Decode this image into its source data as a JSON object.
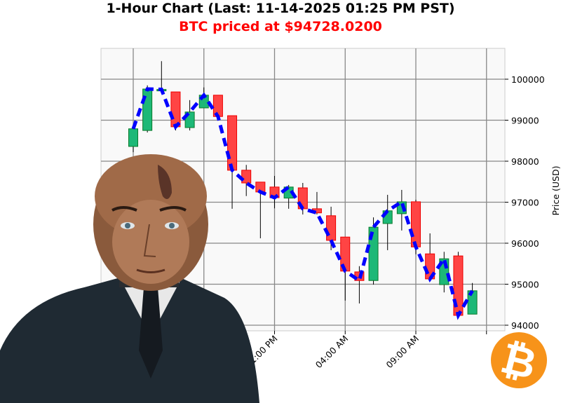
{
  "header": {
    "title": "1-Hour Chart (Last: 11-14-2025 01:25 PM PST)",
    "subtitle": "BTC priced at $94728.0200",
    "subtitle_color": "#ff0000"
  },
  "colors": {
    "up": "#1db877",
    "down": "#ff4444",
    "line": "#0000ff",
    "grid": "#888888",
    "plot_bg": "#f9f9f9",
    "bitcoin": "#f7931a"
  },
  "chart_data": {
    "type": "candlestick",
    "title": "1-Hour Chart (Last: 11-14-2025 01:25 PM PST)",
    "ylabel": "Price (USD)",
    "ylim": [
      93890,
      100970
    ],
    "yticks": [
      94000,
      95000,
      96000,
      97000,
      98000,
      99000,
      100000
    ],
    "xticks": [
      {
        "index": 10,
        "label": "11:00 PM"
      },
      {
        "index": 15,
        "label": "04:00 AM"
      },
      {
        "index": 20,
        "label": "09:00 AM"
      }
    ],
    "grid": true,
    "candles": [
      {
        "time": "11-13 01:00 PM",
        "o": 98360,
        "h": 98790,
        "l": 98220,
        "c": 98790
      },
      {
        "time": "11-13 02:00 PM",
        "o": 98750,
        "h": 99850,
        "l": 98700,
        "c": 99760
      },
      {
        "time": "11-13 03:00 PM",
        "o": 99730,
        "h": 100440,
        "l": 99700,
        "c": 99750
      },
      {
        "time": "11-13 04:00 PM",
        "o": 99690,
        "h": 99690,
        "l": 98750,
        "c": 98840
      },
      {
        "time": "11-13 05:00 PM",
        "o": 98820,
        "h": 99490,
        "l": 98750,
        "c": 99200
      },
      {
        "time": "11-13 06:00 PM",
        "o": 99300,
        "h": 99800,
        "l": 99300,
        "c": 99610
      },
      {
        "time": "11-13 07:00 PM",
        "o": 99610,
        "h": 99610,
        "l": 98990,
        "c": 99090
      },
      {
        "time": "11-13 08:00 PM",
        "o": 99110,
        "h": 99110,
        "l": 96840,
        "c": 97780
      },
      {
        "time": "11-13 09:00 PM",
        "o": 97780,
        "h": 97910,
        "l": 97150,
        "c": 97470
      },
      {
        "time": "11-13 10:00 PM",
        "o": 97490,
        "h": 97490,
        "l": 96120,
        "c": 97250
      },
      {
        "time": "11-13 11:00 PM",
        "o": 97370,
        "h": 97640,
        "l": 96850,
        "c": 97110
      },
      {
        "time": "11-14 12:00 AM",
        "o": 97100,
        "h": 97420,
        "l": 96840,
        "c": 97370
      },
      {
        "time": "11-14 01:00 AM",
        "o": 97350,
        "h": 97470,
        "l": 96700,
        "c": 96840
      },
      {
        "time": "11-14 02:00 AM",
        "o": 96840,
        "h": 97250,
        "l": 96700,
        "c": 96740
      },
      {
        "time": "11-14 03:00 AM",
        "o": 96670,
        "h": 96890,
        "l": 95830,
        "c": 96070
      },
      {
        "time": "11-14 04:00 AM",
        "o": 96150,
        "h": 96150,
        "l": 94600,
        "c": 95320
      },
      {
        "time": "11-14 05:00 AM",
        "o": 95300,
        "h": 95440,
        "l": 94530,
        "c": 95090
      },
      {
        "time": "11-14 06:00 AM",
        "o": 95090,
        "h": 96630,
        "l": 94990,
        "c": 96390
      },
      {
        "time": "11-14 07:00 AM",
        "o": 96480,
        "h": 97180,
        "l": 95830,
        "c": 96790
      },
      {
        "time": "11-14 08:00 AM",
        "o": 96720,
        "h": 97300,
        "l": 96310,
        "c": 97010
      },
      {
        "time": "11-14 09:00 AM",
        "o": 97010,
        "h": 97060,
        "l": 95730,
        "c": 95910
      },
      {
        "time": "11-14 10:00 AM",
        "o": 95740,
        "h": 96240,
        "l": 95130,
        "c": 95130
      },
      {
        "time": "11-14 11:00 AM",
        "o": 94990,
        "h": 95790,
        "l": 94800,
        "c": 95620
      },
      {
        "time": "11-14 12:00 PM",
        "o": 95690,
        "h": 95790,
        "l": 94190,
        "c": 94240
      },
      {
        "time": "11-14 01:00 PM",
        "o": 94270,
        "h": 95030,
        "l": 94270,
        "c": 94840
      }
    ],
    "line": {
      "style": "dashed",
      "values": [
        98790,
        99760,
        99750,
        98840,
        99200,
        99610,
        99090,
        97780,
        97470,
        97250,
        97110,
        97370,
        96840,
        96740,
        96070,
        95320,
        95090,
        96390,
        96790,
        97010,
        95910,
        95130,
        95620,
        94240,
        94840
      ]
    }
  }
}
